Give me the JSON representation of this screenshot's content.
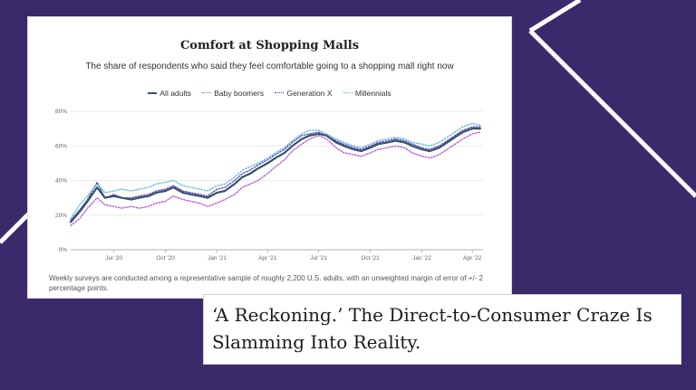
{
  "colors": {
    "background": "#3a2a6b",
    "all_adults": "#35546a",
    "baby_boomers": "#b04fd6",
    "generation_x": "#5a3fb8",
    "millennials": "#5bb7e6"
  },
  "chart_data": {
    "type": "line",
    "title": "Comfort at Shopping Malls",
    "subtitle": "The share of respondents who said they feel comfortable going to a shopping mall right now",
    "y_ticks": [
      "0%",
      "20%",
      "40%",
      "60%",
      "80%"
    ],
    "ylim": [
      0,
      80
    ],
    "x_ticks": [
      "Jul '20",
      "Oct '20",
      "Jan '21",
      "Apr '21",
      "Jul '21",
      "Oct '21",
      "Jan '22",
      "Apr '22"
    ],
    "x_tick_positions": [
      "2020-07-01",
      "2020-10-01",
      "2021-01-01",
      "2021-04-01",
      "2021-07-01",
      "2021-10-01",
      "2022-01-01",
      "2022-04-01"
    ],
    "x": [
      "2020-04-15",
      "2020-05-01",
      "2020-05-15",
      "2020-06-01",
      "2020-06-15",
      "2020-07-01",
      "2020-07-15",
      "2020-08-01",
      "2020-08-15",
      "2020-09-01",
      "2020-09-15",
      "2020-10-01",
      "2020-10-15",
      "2020-11-01",
      "2020-11-15",
      "2020-12-01",
      "2020-12-15",
      "2021-01-01",
      "2021-01-15",
      "2021-02-01",
      "2021-02-15",
      "2021-03-01",
      "2021-03-15",
      "2021-04-01",
      "2021-04-15",
      "2021-05-01",
      "2021-05-15",
      "2021-06-01",
      "2021-06-15",
      "2021-07-01",
      "2021-07-15",
      "2021-08-01",
      "2021-08-15",
      "2021-09-01",
      "2021-09-15",
      "2021-10-01",
      "2021-10-15",
      "2021-11-01",
      "2021-11-15",
      "2021-12-01",
      "2021-12-15",
      "2022-01-01",
      "2022-01-15",
      "2022-02-01",
      "2022-02-15",
      "2022-03-01",
      "2022-03-15",
      "2022-04-01",
      "2022-04-15"
    ],
    "series": [
      {
        "name": "All adults",
        "values": [
          16,
          22,
          28,
          36,
          30,
          31,
          30,
          29,
          30,
          31,
          33,
          34,
          36,
          33,
          32,
          31,
          30,
          33,
          34,
          38,
          42,
          44,
          47,
          50,
          53,
          56,
          60,
          64,
          66,
          67,
          66,
          62,
          60,
          58,
          57,
          59,
          61,
          62,
          63,
          62,
          60,
          58,
          57,
          59,
          62,
          65,
          68,
          70,
          70
        ]
      },
      {
        "name": "Baby boomers",
        "values": [
          14,
          18,
          24,
          30,
          26,
          25,
          24,
          25,
          24,
          25,
          27,
          28,
          31,
          29,
          28,
          27,
          25,
          27,
          29,
          32,
          36,
          38,
          40,
          44,
          48,
          52,
          57,
          61,
          64,
          66,
          64,
          59,
          56,
          55,
          54,
          56,
          58,
          59,
          60,
          59,
          56,
          54,
          53,
          55,
          58,
          61,
          64,
          67,
          68
        ]
      },
      {
        "name": "Generation X",
        "values": [
          17,
          23,
          29,
          39,
          30,
          32,
          30,
          30,
          31,
          32,
          34,
          35,
          37,
          34,
          33,
          32,
          31,
          35,
          36,
          40,
          44,
          46,
          49,
          52,
          55,
          58,
          62,
          66,
          67,
          68,
          66,
          63,
          61,
          59,
          58,
          60,
          62,
          63,
          64,
          63,
          61,
          59,
          58,
          60,
          63,
          66,
          69,
          71,
          71
        ]
      },
      {
        "name": "Millennials",
        "values": [
          18,
          26,
          31,
          38,
          33,
          34,
          35,
          34,
          35,
          36,
          38,
          39,
          40,
          37,
          36,
          35,
          34,
          37,
          38,
          42,
          46,
          48,
          50,
          53,
          56,
          59,
          63,
          67,
          69,
          69,
          67,
          64,
          62,
          60,
          59,
          61,
          63,
          64,
          65,
          64,
          62,
          61,
          60,
          62,
          65,
          68,
          71,
          73,
          72
        ]
      }
    ]
  },
  "footnote": "Weekly surveys are conducted among a representative sample of roughly 2,200 U.S. adults, with an unweighted margin of error of +/- 2 percentage points.",
  "headline": "‘A Reckoning.’ The Direct-to-Consumer Craze Is Slamming Into Reality."
}
